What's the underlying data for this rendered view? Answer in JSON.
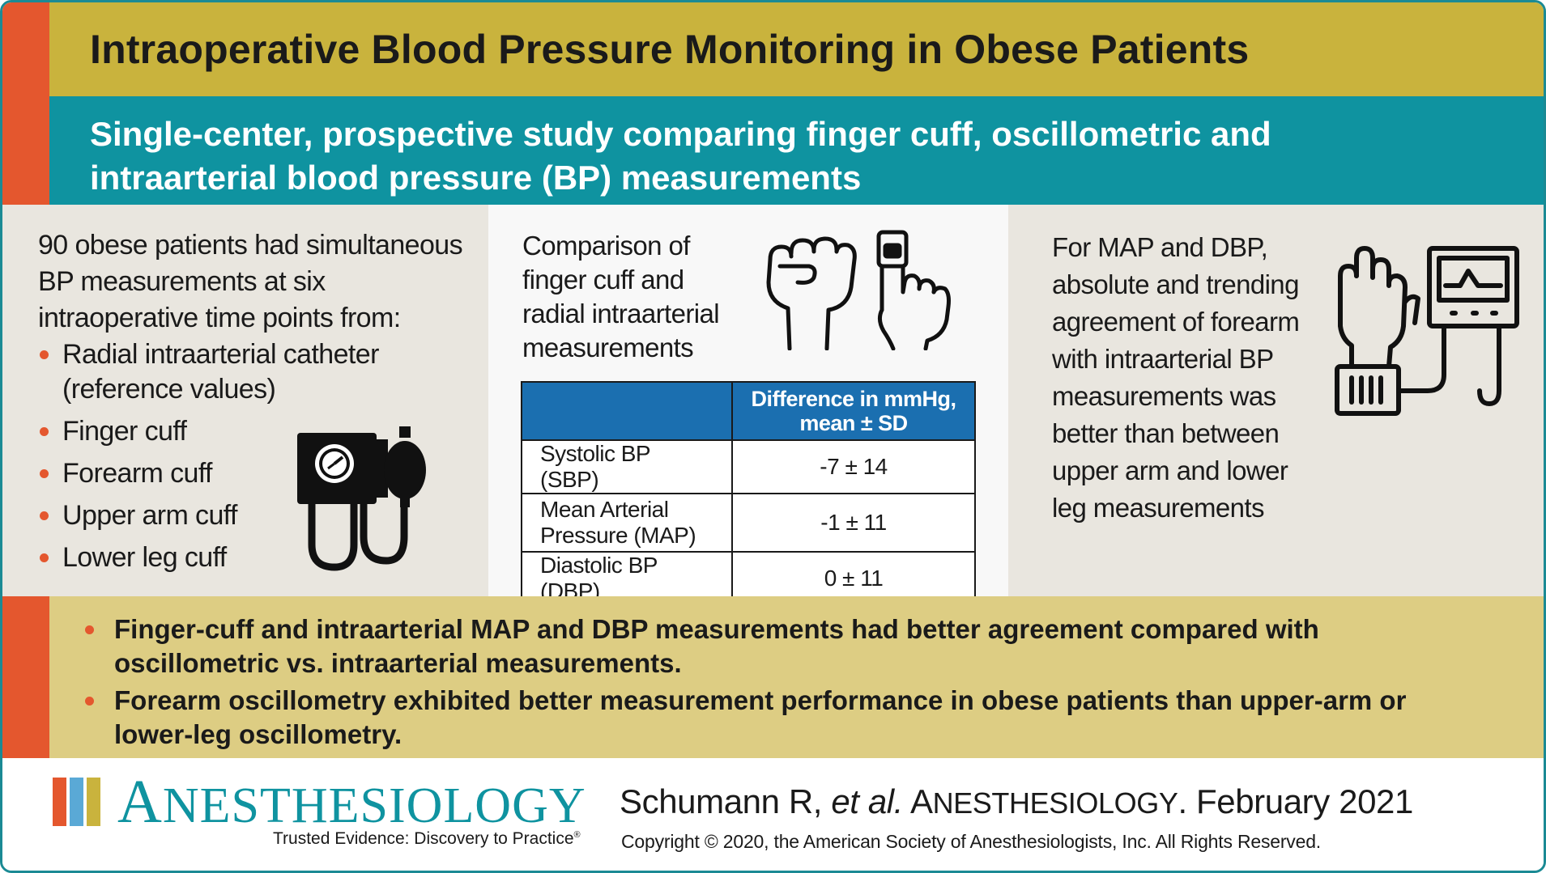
{
  "title": "Intraoperative Blood Pressure Monitoring in Obese Patients",
  "subtitle": "Single-center, prospective study comparing finger cuff, oscillometric and intraarterial blood pressure (BP) measurements",
  "left": {
    "intro": "90 obese patients had simultaneous BP measurements at six intraoperative time points from:",
    "items": [
      "Radial intraarterial catheter (reference values)",
      "Finger cuff",
      "Forearm cuff",
      "Upper arm cuff",
      "Lower leg cuff"
    ],
    "icon": "blood-pressure-cuff-icon"
  },
  "middle": {
    "intro": "Comparison of finger cuff and radial intraarterial measurements",
    "icons": [
      "fist-icon",
      "finger-cuff-icon"
    ],
    "table": {
      "header": [
        "",
        "Difference in mmHg, mean ± SD"
      ],
      "rows": [
        {
          "label": "Systolic BP (SBP)",
          "value": "-7 ± 14"
        },
        {
          "label": "Mean Arterial Pressure (MAP)",
          "value": "-1 ± 11"
        },
        {
          "label": "Diastolic BP (DBP)",
          "value": "0 ± 11"
        }
      ]
    }
  },
  "right": {
    "text": "For MAP and DBP, absolute and trending agreement of forearm with intraarterial BP measurements was better than between upper arm and lower leg measurements",
    "icon": "forearm-cuff-monitor-icon"
  },
  "findings": [
    "Finger-cuff and intraarterial MAP and DBP measurements had better agreement compared with oscillometric vs. intraarterial measurements.",
    "Forearm oscillometry exhibited better measurement performance in obese patients than upper-arm or lower-leg oscillometry."
  ],
  "footer": {
    "logo_first": "A",
    "logo_rest": "NESTHESIOLOGY",
    "tagline": "Trusted Evidence: Discovery to Practice",
    "tagline_mark": "®",
    "citation_authors": "Schumann R, ",
    "citation_etal": "et al.",
    "citation_journal_first": " A",
    "citation_journal_rest": "NESTHESIOLOGY",
    "citation_date": ". February 2021",
    "copyright": "Copyright © 2020, the American Society of Anesthesiologists, Inc. All Rights Reserved."
  },
  "colors": {
    "gold": "#c9b33d",
    "teal": "#0f93a0",
    "orange": "#e4572e",
    "table_header_blue": "#1b6fb0",
    "findings_bg": "#ddcd83",
    "panel_gray": "#e9e6df",
    "logo_bar_colors": [
      "#e4572e",
      "#5aa9d6",
      "#c9b33d"
    ]
  }
}
